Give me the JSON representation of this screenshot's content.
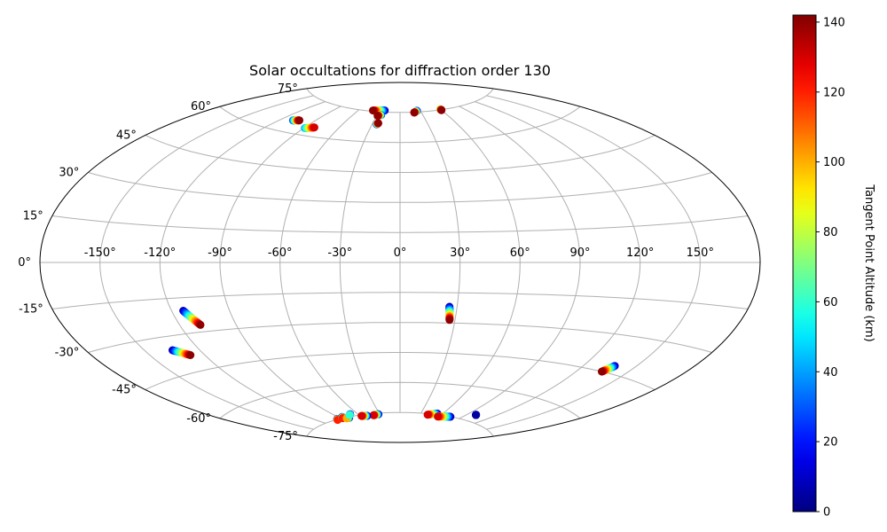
{
  "chart_data": {
    "type": "scatter",
    "projection": "aitoff",
    "title": "Solar occultations for diffraction order 130",
    "grid": true,
    "lon_ticks": [
      -150,
      -120,
      -90,
      -60,
      -30,
      0,
      30,
      60,
      90,
      120,
      150
    ],
    "lon_tick_labels": [
      "-150°",
      "-120°",
      "-90°",
      "-60°",
      "-30°",
      "0°",
      "30°",
      "60°",
      "90°",
      "120°",
      "150°"
    ],
    "lat_ticks": [
      75,
      60,
      45,
      30,
      15,
      0,
      -15,
      -30,
      -45,
      -60,
      -75
    ],
    "lat_tick_labels": [
      "75°",
      "60°",
      "45°",
      "30°",
      "15°",
      "0°",
      "-15°",
      "-30°",
      "-45°",
      "-60°",
      "-75°"
    ],
    "colorbar": {
      "label": "Tangent Point Altitude (km)",
      "colormap": "jet",
      "min": 0,
      "max": 142,
      "ticks": [
        0,
        20,
        40,
        60,
        80,
        100,
        120,
        140
      ],
      "tick_labels": [
        "0",
        "20",
        "40",
        "60",
        "80",
        "100",
        "120",
        "140"
      ]
    },
    "tracks": [
      {
        "lon_start": -109,
        "lat_start": 65.2,
        "alt_start": 25,
        "lon_end": -104,
        "lat_end": 65.8,
        "alt_end": 140
      },
      {
        "lon_start": -89,
        "lat_start": 63.2,
        "alt_start": 40,
        "lon_end": -82,
        "lat_end": 64.2,
        "alt_end": 130
      },
      {
        "lon_start": -23,
        "lat_start": 75.8,
        "alt_start": 5,
        "lon_end": -40,
        "lat_end": 75.4,
        "alt_end": 140
      },
      {
        "lon_start": -25,
        "lat_start": 73.5,
        "alt_start": 20,
        "lon_end": -29,
        "lat_end": 73.0,
        "alt_end": 140
      },
      {
        "lon_start": -25,
        "lat_start": 68.8,
        "alt_start": 10,
        "lon_end": -24,
        "lat_end": 69.4,
        "alt_end": 140
      },
      {
        "lon_start": 25,
        "lat_start": 75.6,
        "alt_start": 5,
        "lon_end": 20,
        "lat_end": 74.8,
        "alt_end": 140
      },
      {
        "lon_start": 60,
        "lat_start": 75.3,
        "alt_start": 60,
        "lon_end": 60,
        "lat_end": 74.8,
        "alt_end": 140
      },
      {
        "lon_start": -114,
        "lat_start": -20.5,
        "alt_start": 5,
        "lon_end": -109,
        "lat_end": -27,
        "alt_end": 140
      },
      {
        "lon_start": -135,
        "lat_start": -35.5,
        "alt_start": 5,
        "lon_end": -128,
        "lat_end": -38.5,
        "alt_end": 140
      },
      {
        "lon_start": 26,
        "lat_start": -22,
        "alt_start": 5,
        "lon_end": 27,
        "lat_end": -28.5,
        "alt_end": 140
      },
      {
        "lon_start": 138,
        "lat_start": -42,
        "alt_start": 5,
        "lon_end": 135,
        "lat_end": -45,
        "alt_end": 140
      },
      {
        "lon_start": 100,
        "lat_start": -72,
        "alt_start": 5,
        "lon_end": 100,
        "lat_end": -72,
        "alt_end": 5
      },
      {
        "lon_start": 53,
        "lat_start": -74.5,
        "alt_start": 5,
        "lon_end": 41,
        "lat_end": -75.5,
        "alt_end": 130
      },
      {
        "lon_start": 75,
        "lat_start": -75,
        "alt_start": 5,
        "lon_end": 58,
        "lat_end": -75.8,
        "alt_end": 130
      },
      {
        "lon_start": -32,
        "lat_start": -75.5,
        "alt_start": 5,
        "lon_end": -40,
        "lat_end": -75.8,
        "alt_end": 130
      },
      {
        "lon_start": -50,
        "lat_start": -75.8,
        "alt_start": 5,
        "lon_end": -58,
        "lat_end": -75.5,
        "alt_end": 130
      },
      {
        "lon_start": -95,
        "lat_start": -74.8,
        "alt_start": 5,
        "lon_end": -97,
        "lat_end": -75.2,
        "alt_end": 120
      },
      {
        "lon_start": -85,
        "lat_start": -74.5,
        "alt_start": 5,
        "lon_end": -87,
        "lat_end": -75.0,
        "alt_end": 120
      },
      {
        "lon_start": -78,
        "lat_start": -75.4,
        "alt_start": 5,
        "lon_end": -82,
        "lat_end": -75.4,
        "alt_end": 100
      },
      {
        "lon_start": -70,
        "lat_start": -74.0,
        "alt_start": 5,
        "lon_end": -72,
        "lat_end": -74.3,
        "alt_end": 60
      }
    ]
  }
}
